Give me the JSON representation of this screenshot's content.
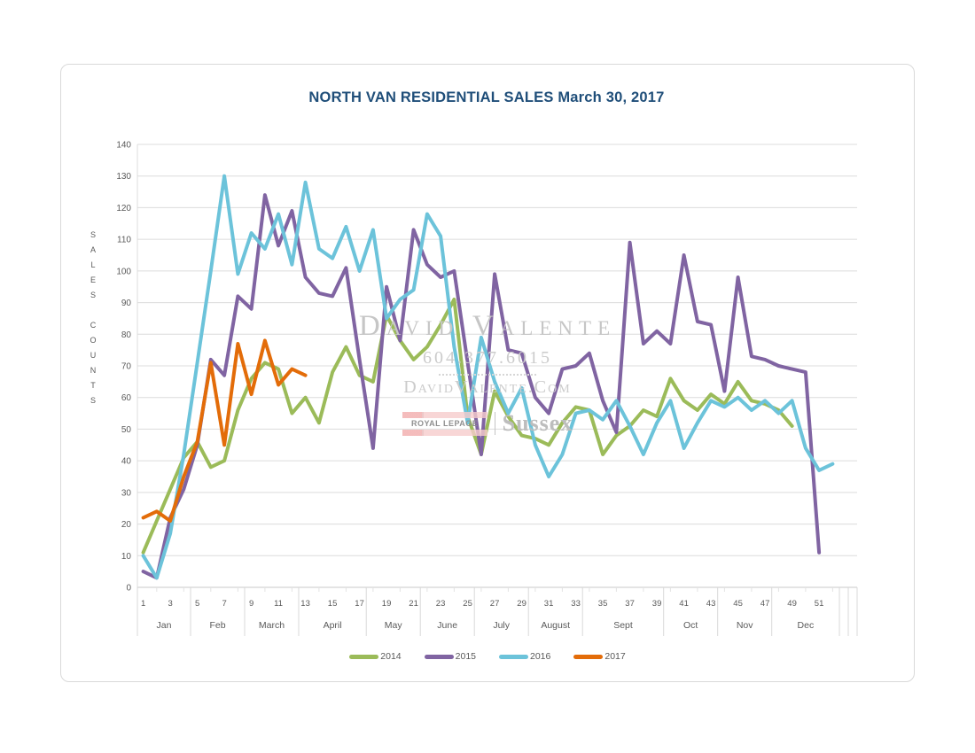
{
  "title": "NORTH VAN RESIDENTIAL SALES March 30, 2017",
  "title_color": "#1f4e79",
  "watermark": {
    "name": "David Valente",
    "phone": "604.377.6015",
    "site": "DavidValente.Com",
    "brokerage": "ROYAL LEPAGE",
    "brokerage_sub": "Sussex"
  },
  "y_axis": {
    "letters": [
      "S",
      "A",
      "L",
      "E",
      "S",
      "",
      "C",
      "O",
      "U",
      "N",
      "T",
      "S"
    ],
    "min": 0,
    "max": 140,
    "step": 10,
    "ticks": [
      0,
      10,
      20,
      30,
      40,
      50,
      60,
      70,
      80,
      90,
      100,
      110,
      120,
      130,
      140
    ]
  },
  "x_axis": {
    "months": [
      {
        "label": "Jan",
        "weeks": [
          1,
          3
        ],
        "start": 1,
        "end": 4
      },
      {
        "label": "Feb",
        "weeks": [
          5,
          7
        ],
        "start": 5,
        "end": 8
      },
      {
        "label": "March",
        "weeks": [
          9,
          11
        ],
        "start": 9,
        "end": 12
      },
      {
        "label": "April",
        "weeks": [
          13,
          15,
          17
        ],
        "start": 13,
        "end": 17
      },
      {
        "label": "May",
        "weeks": [
          19,
          21
        ],
        "start": 18,
        "end": 21
      },
      {
        "label": "June",
        "weeks": [
          23,
          25
        ],
        "start": 22,
        "end": 25
      },
      {
        "label": "July",
        "weeks": [
          27,
          29
        ],
        "start": 26,
        "end": 29
      },
      {
        "label": "August",
        "weeks": [
          31,
          33
        ],
        "start": 30,
        "end": 33
      },
      {
        "label": "Sept",
        "weeks": [
          35,
          37,
          39
        ],
        "start": 34,
        "end": 39
      },
      {
        "label": "Oct",
        "weeks": [
          41,
          43
        ],
        "start": 40,
        "end": 43
      },
      {
        "label": "Nov",
        "weeks": [
          45,
          47
        ],
        "start": 44,
        "end": 47
      },
      {
        "label": "Dec",
        "weeks": [
          49,
          51
        ],
        "start": 48,
        "end": 52
      }
    ],
    "trailing_empty_cells": 2,
    "x_tick_labels": [
      1,
      3,
      5,
      7,
      9,
      11,
      13,
      15,
      17,
      19,
      21,
      23,
      25,
      27,
      29,
      31,
      33,
      35,
      37,
      39,
      41,
      43,
      45,
      47,
      49,
      51
    ]
  },
  "legend": [
    {
      "label": "2014",
      "color": "#9bbb59"
    },
    {
      "label": "2015",
      "color": "#8064a2"
    },
    {
      "label": "2016",
      "color": "#6cc3da"
    },
    {
      "label": "2017",
      "color": "#e36c09"
    }
  ],
  "chart_data": {
    "type": "line",
    "title": "NORTH VAN RESIDENTIAL SALES March 30, 2017",
    "xlabel": "week of year (grouped by month Jan-Dec)",
    "ylabel": "SALES COUNTS",
    "ylim": [
      0,
      140
    ],
    "grid": "horizontal",
    "legend_position": "bottom",
    "x_unit": "week",
    "series": [
      {
        "name": "2014",
        "color": "#9bbb59",
        "start_week": 1,
        "values": [
          11,
          21,
          31,
          41,
          46,
          38,
          40,
          56,
          66,
          71,
          69,
          55,
          60,
          52,
          68,
          76,
          67,
          65,
          86,
          78,
          72,
          76,
          83,
          91,
          54,
          42,
          62,
          54,
          48,
          47,
          45,
          52,
          57,
          56,
          42,
          48,
          51,
          56,
          54,
          66,
          59,
          56,
          61,
          58,
          65,
          59,
          58,
          56,
          51
        ]
      },
      {
        "name": "2015",
        "color": "#8064a2",
        "start_week": 1,
        "values": [
          5,
          3,
          22,
          31,
          45,
          72,
          67,
          92,
          88,
          124,
          108,
          119,
          98,
          93,
          92,
          101,
          72,
          44,
          95,
          78,
          113,
          102,
          98,
          100,
          71,
          42,
          99,
          75,
          74,
          60,
          55,
          69,
          70,
          74,
          59,
          49,
          109,
          77,
          81,
          77,
          105,
          84,
          83,
          62,
          98,
          73,
          72,
          70,
          69,
          68,
          11
        ]
      },
      {
        "name": "2016",
        "color": "#6cc3da",
        "start_week": 1,
        "values": [
          10,
          3,
          17,
          42,
          71,
          100,
          130,
          99,
          112,
          107,
          118,
          102,
          128,
          107,
          104,
          114,
          100,
          113,
          85,
          91,
          94,
          118,
          111,
          76,
          52,
          79,
          65,
          55,
          63,
          45,
          35,
          42,
          55,
          56,
          53,
          59,
          51,
          42,
          52,
          59,
          44,
          52,
          59,
          57,
          60,
          56,
          59,
          55,
          59,
          44,
          37,
          39
        ]
      },
      {
        "name": "2017",
        "color": "#e36c09",
        "start_week": 1,
        "values": [
          22,
          24,
          21,
          35,
          46,
          71,
          45,
          77,
          61,
          78,
          64,
          69,
          67
        ]
      }
    ]
  }
}
